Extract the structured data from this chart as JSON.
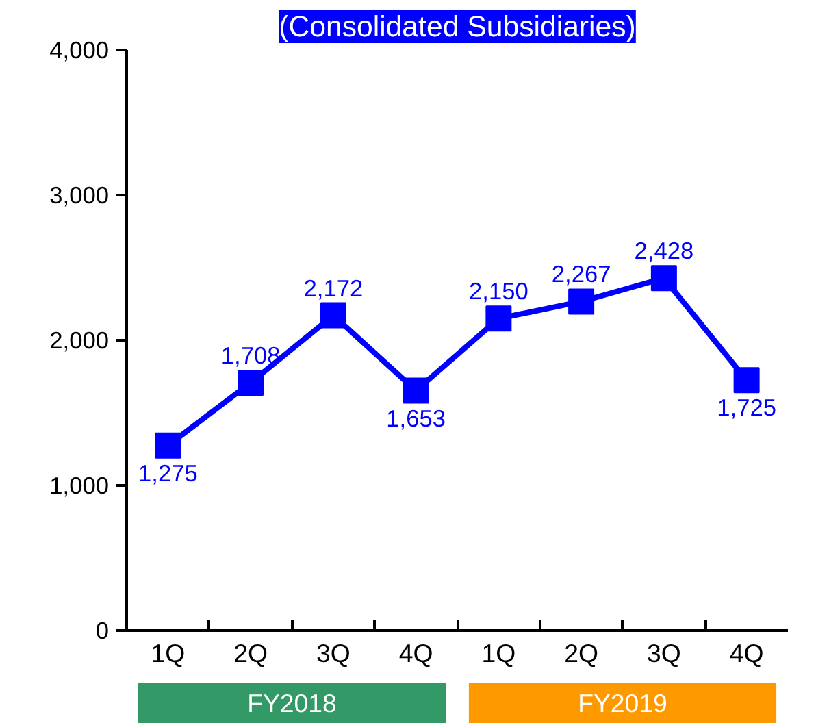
{
  "chart_data": {
    "type": "line",
    "title": "(Consolidated Subsidiaries)",
    "categories": [
      "1Q",
      "2Q",
      "3Q",
      "4Q",
      "1Q",
      "2Q",
      "3Q",
      "4Q"
    ],
    "series": [
      {
        "color": "#0000ff",
        "values": [
          1275,
          1708,
          2172,
          1653,
          2150,
          2267,
          2428,
          1725
        ],
        "value_labels": [
          "1,275",
          "1,708",
          "2,172",
          "1,653",
          "2,150",
          "2,267",
          "2,428",
          "1,725"
        ]
      }
    ],
    "ylim": [
      0,
      4000
    ],
    "yticks": [
      0,
      {
        "value": 1000,
        "label": "1,000"
      },
      {
        "value": 2000,
        "label": "2,000"
      },
      {
        "value": 3000,
        "label": "3,000"
      },
      {
        "value": 4000,
        "label": "4,000"
      }
    ],
    "grid": false,
    "marker": "square",
    "line_style": "solid",
    "annotations": [
      "FY2018",
      "FY2019"
    ]
  }
}
